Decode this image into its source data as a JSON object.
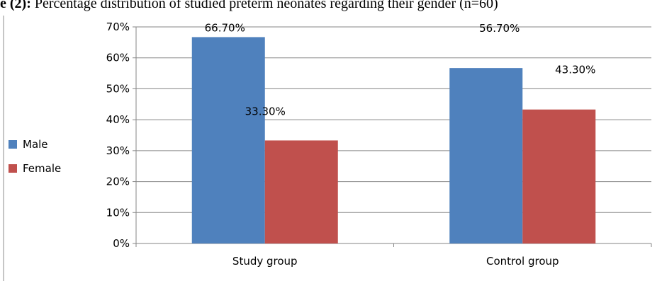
{
  "caption": {
    "prefix": "e (2):",
    "text": " Percentage distribution of studied preterm neonates regarding their gender (n=60)"
  },
  "chart_data": {
    "type": "bar",
    "categories": [
      "Study group",
      "Control group"
    ],
    "series": [
      {
        "name": "Male",
        "values": [
          66.7,
          56.7
        ],
        "labels": [
          "66.70%",
          "56.70%"
        ],
        "color": "#4F81BD"
      },
      {
        "name": "Female",
        "values": [
          33.3,
          43.3
        ],
        "labels": [
          "33.30%",
          "43.30%"
        ],
        "color": "#C0504D"
      }
    ],
    "yticks": [
      "0%",
      "10%",
      "20%",
      "30%",
      "40%",
      "50%",
      "60%",
      "70%"
    ],
    "ylim": [
      0,
      70
    ],
    "grid": true,
    "legend_position": "left"
  }
}
